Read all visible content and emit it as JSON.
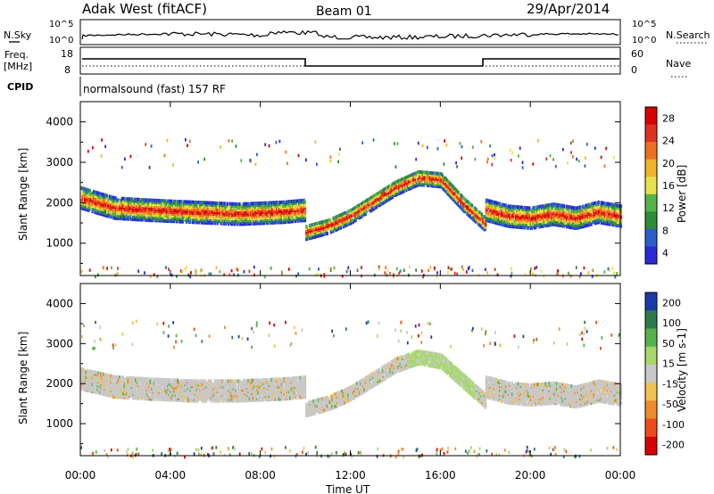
{
  "header": {
    "station": "Adak West (fitACF)",
    "beam": "Beam 01",
    "date": "29/Apr/2014"
  },
  "top_panels": {
    "nsky_label": "N.Sky",
    "nsearch_label": "N.Search",
    "noise_ticks": [
      "10^5",
      "10^0"
    ],
    "freq_label_1": "Freq.",
    "freq_label_2": "[MHz]",
    "freq_ticks": [
      "18",
      "8"
    ],
    "nave_label": "Nave",
    "nave_ticks": [
      "60",
      "0"
    ],
    "cpid_label": "CPID",
    "cpid_text": "normalsound (fast) 157 RF"
  },
  "xaxis": {
    "title": "Time UT",
    "ticks": [
      "00:00",
      "04:00",
      "08:00",
      "12:00",
      "16:00",
      "20:00",
      "00:00"
    ]
  },
  "colors": {
    "power_scale": [
      "#2a2ad8",
      "#2a5fc8",
      "#2f8a3a",
      "#56b24a",
      "#e8e24a",
      "#f2b52a",
      "#f07020",
      "#e03020",
      "#d80000"
    ],
    "velocity_scale": [
      "#d80000",
      "#f04a1a",
      "#f08a2a",
      "#f2c250",
      "#c8c8c8",
      "#a6d96a",
      "#56b24a",
      "#2f7a4a",
      "#1a3aa8"
    ],
    "noise_line": "#000000"
  },
  "chart_data": [
    {
      "type": "heatmap",
      "name": "power",
      "ylabel": "Slant Range [km]",
      "yticks": [
        "4000",
        "3000",
        "2000",
        "1000"
      ],
      "ylim": [
        200,
        4500
      ],
      "xlim_hours": [
        0,
        24
      ],
      "colorbar_label": "Power [dB]",
      "colorbar_ticks": [
        "28",
        "24",
        "20",
        "16",
        "12",
        "8",
        "4"
      ],
      "bands": [
        {
          "x": [
            0,
            1.5,
            3,
            5,
            7,
            9,
            10
          ],
          "y": [
            2150,
            1900,
            1850,
            1800,
            1750,
            1800,
            1850
          ]
        },
        {
          "x": [
            10,
            11,
            12,
            13,
            14,
            15,
            16,
            17,
            18
          ],
          "y": [
            1300,
            1450,
            1700,
            2050,
            2400,
            2650,
            2600,
            2000,
            1500
          ]
        },
        {
          "x": [
            18,
            19,
            20,
            21,
            22,
            23,
            24
          ],
          "y": [
            1850,
            1700,
            1650,
            1750,
            1650,
            1800,
            1700
          ]
        }
      ]
    },
    {
      "type": "heatmap",
      "name": "velocity",
      "ylabel": "Slant Range [km]",
      "yticks": [
        "4000",
        "3000",
        "2000",
        "1000"
      ],
      "ylim": [
        200,
        4500
      ],
      "xlim_hours": [
        0,
        24
      ],
      "colorbar_label": "Velocity [m s-1]",
      "colorbar_ticks": [
        "200",
        "100",
        "50",
        "15",
        "-15",
        "-50",
        "-100",
        "-200"
      ],
      "bands": [
        {
          "x": [
            0,
            1.5,
            3,
            5,
            7,
            9,
            10
          ],
          "y": [
            2150,
            1950,
            1900,
            1850,
            1850,
            1900,
            1950
          ]
        },
        {
          "x": [
            10,
            11,
            12,
            13,
            14,
            15,
            16,
            17,
            18
          ],
          "y": [
            1400,
            1550,
            1800,
            2150,
            2500,
            2700,
            2600,
            2100,
            1600
          ]
        },
        {
          "x": [
            18,
            19,
            20,
            21,
            22,
            23,
            24
          ],
          "y": [
            1950,
            1800,
            1750,
            1800,
            1700,
            1850,
            1750
          ]
        }
      ]
    }
  ]
}
